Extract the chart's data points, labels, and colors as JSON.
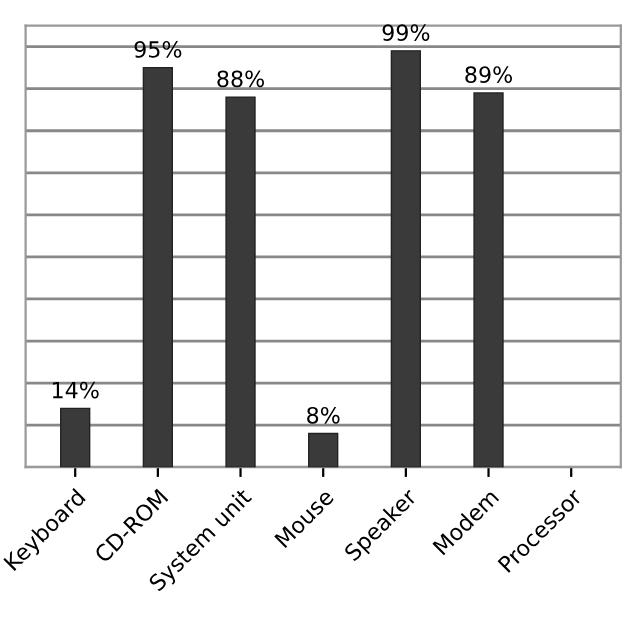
{
  "chart_data": {
    "type": "bar",
    "categories": [
      "Keyboard",
      "CD-ROM",
      "System unit",
      "Mouse",
      "Speaker",
      "Modem",
      "Processor"
    ],
    "values": [
      14,
      95,
      88,
      8,
      99,
      89,
      null
    ],
    "value_labels": [
      "14%",
      "95%",
      "88%",
      "8%",
      "99%",
      "89%",
      null
    ],
    "color": "#3a3a3a",
    "ylim": [
      0,
      105
    ],
    "yticks": [
      {
        "value": 0,
        "label": null
      },
      {
        "value": 10,
        "label": null
      },
      {
        "value": 20,
        "label": null
      },
      {
        "value": 30,
        "label": null
      },
      {
        "value": 40,
        "label": null
      },
      {
        "value": 50,
        "label": null
      },
      {
        "value": 60,
        "label": null
      },
      {
        "value": 70,
        "label": null
      },
      {
        "value": 80,
        "label": null
      },
      {
        "value": 90,
        "label": null
      },
      {
        "value": 100,
        "label": null
      }
    ],
    "grid": "y"
  }
}
